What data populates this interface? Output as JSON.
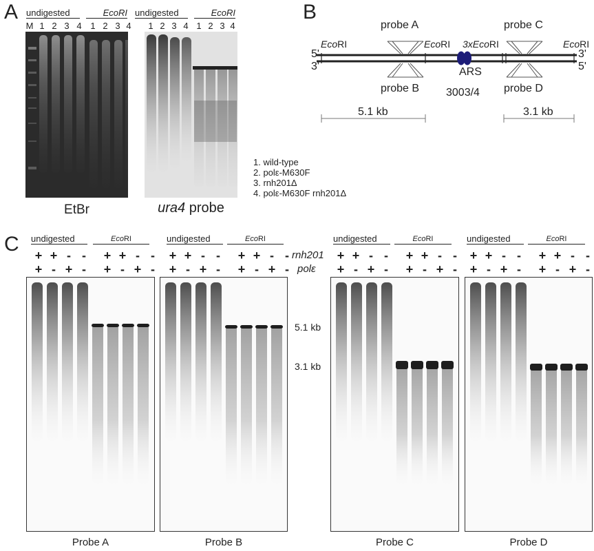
{
  "panelA": {
    "letter": "A",
    "header_undigested": "undigested",
    "header_ecori": "EcoRI",
    "lane_labels_etbr": [
      "M",
      "1",
      "2",
      "3",
      "4",
      "1",
      "2",
      "3",
      "4"
    ],
    "lane_labels_probe": [
      "1",
      "2",
      "3",
      "4",
      "1",
      "2",
      "3",
      "4"
    ],
    "etbr_caption": "EtBr",
    "probe_caption_italic": "ura4",
    "probe_caption_rest": " probe",
    "legend": [
      "1. wild-type",
      "2. polε-M630F",
      "3. rnh201Δ",
      "4. polε-M630F rnh201Δ"
    ]
  },
  "panelB": {
    "letter": "B",
    "probe_a": "probe A",
    "probe_b": "probe B",
    "probe_c": "probe C",
    "probe_d": "probe D",
    "ecori_left_italic": "Eco",
    "ecori_suffix": "RI",
    "ecori_3x_prefix": "3x",
    "ecori_3x_italic": "Eco",
    "strand_5_left": "5'",
    "strand_3_left": "3'",
    "strand_3_right": "3'",
    "strand_5_right": "5'",
    "ars_label": "ARS",
    "ars_number": "3003/4",
    "size_left": "5.1 kb",
    "size_right": "3.1 kb",
    "ars_color": "#1c1c78"
  },
  "panelC": {
    "letter": "C",
    "header_undigested": "undigested",
    "header_eco_italic": "Eco",
    "header_eco_rest": "RI",
    "row_rnh201": "rnh201",
    "row_pole": "polε",
    "rnh201_signs": [
      "+",
      "+",
      "-",
      "-",
      "+",
      "+",
      "-",
      "-"
    ],
    "pole_signs": [
      "+",
      "-",
      "+",
      "-",
      "+",
      "-",
      "+",
      "-"
    ],
    "size_5_1": "5.1 kb",
    "size_3_1": "3.1 kb",
    "captions": [
      "Probe A",
      "Probe B",
      "Probe C",
      "Probe D"
    ]
  }
}
